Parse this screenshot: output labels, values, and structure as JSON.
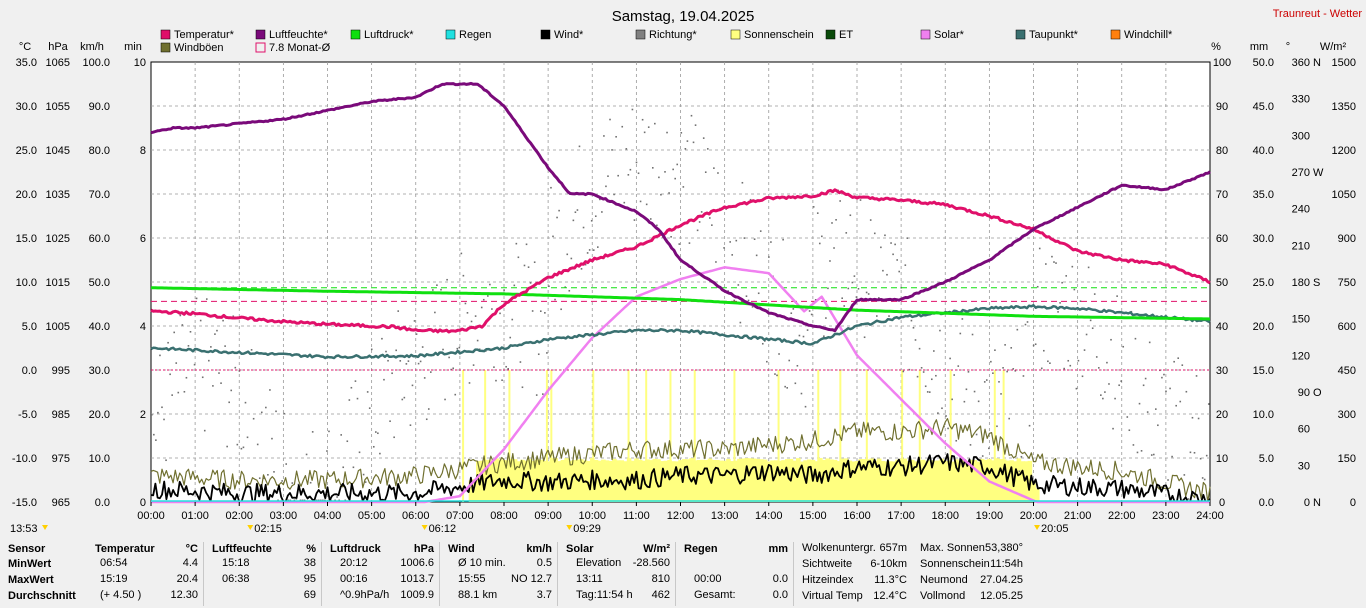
{
  "title": "Samstag, 19.04.2025",
  "brand": "Traunreut - Wetter",
  "legend": [
    {
      "label": "Temperatur*",
      "color": "#e0106a"
    },
    {
      "label": "Luftfeuchte*",
      "color": "#7a0a7a"
    },
    {
      "label": "Luftdruck*",
      "color": "#10e010"
    },
    {
      "label": "Regen",
      "color": "#20e0e0"
    },
    {
      "label": "Wind*",
      "color": "#000000"
    },
    {
      "label": "Richtung*",
      "color": "#808080"
    },
    {
      "label": "Sonnenschein",
      "color": "#ffff80"
    },
    {
      "label": "ET",
      "color": "#0a4a0a"
    },
    {
      "label": "Solar*",
      "color": "#f080f0"
    },
    {
      "label": "Taupunkt*",
      "color": "#3a7070"
    },
    {
      "label": "Windchill*",
      "color": "#ff8010"
    },
    {
      "label": "Windböen",
      "color": "#707030"
    },
    {
      "label": "7.8 Monat-Ø",
      "color": "#e0106a"
    }
  ],
  "axis_units": {
    "left": [
      "°C",
      "hPa",
      "km/h",
      "min"
    ],
    "right": [
      "%",
      "mm",
      "°",
      "W/m²"
    ]
  },
  "axes": {
    "temp": [
      "35.0",
      "30.0",
      "25.0",
      "20.0",
      "15.0",
      "10.0",
      "5.0",
      "0.0",
      "-5.0",
      "-10.0",
      "-15.0"
    ],
    "hpa": [
      "1065",
      "1055",
      "1045",
      "1035",
      "1025",
      "1015",
      "1005",
      "995",
      "985",
      "975",
      "965"
    ],
    "kmh": [
      "100.0",
      "90.0",
      "80.0",
      "70.0",
      "60.0",
      "50.0",
      "40.0",
      "30.0",
      "20.0",
      "10.0",
      "0.0"
    ],
    "min": [
      {
        "v": 10,
        "t": "10"
      },
      {
        "v": 8,
        "t": "8"
      },
      {
        "v": 6,
        "t": "6"
      },
      {
        "v": 4,
        "t": "4"
      },
      {
        "v": 2,
        "t": "2"
      },
      {
        "v": 0,
        "t": "0"
      }
    ],
    "pct": [
      "100",
      "90",
      "80",
      "70",
      "60",
      "50",
      "40",
      "30",
      "20",
      "10",
      "0"
    ],
    "mm": [
      "50.0",
      "45.0",
      "40.0",
      "35.0",
      "30.0",
      "25.0",
      "20.0",
      "15.0",
      "10.0",
      "5.0",
      "0.0"
    ],
    "deg": [
      {
        "v": 360,
        "t": "360",
        "d": "N"
      },
      {
        "v": 330,
        "t": "330",
        "d": ""
      },
      {
        "v": 300,
        "t": "300",
        "d": ""
      },
      {
        "v": 270,
        "t": "270",
        "d": "W"
      },
      {
        "v": 240,
        "t": "240",
        "d": ""
      },
      {
        "v": 210,
        "t": "210",
        "d": ""
      },
      {
        "v": 180,
        "t": "180",
        "d": "S"
      },
      {
        "v": 150,
        "t": "150",
        "d": ""
      },
      {
        "v": 120,
        "t": "120",
        "d": ""
      },
      {
        "v": 90,
        "t": "90",
        "d": "O"
      },
      {
        "v": 60,
        "t": "60",
        "d": ""
      },
      {
        "v": 30,
        "t": "30",
        "d": ""
      },
      {
        "v": 0,
        "t": "0",
        "d": "N"
      }
    ],
    "wm2": [
      "1500",
      "1350",
      "1200",
      "1050",
      "900",
      "750",
      "600",
      "450",
      "300",
      "150",
      "0"
    ],
    "time": [
      "00:00",
      "01:00",
      "02:00",
      "03:00",
      "04:00",
      "05:00",
      "06:00",
      "07:00",
      "08:00",
      "09:00",
      "10:00",
      "11:00",
      "12:00",
      "13:00",
      "14:00",
      "15:00",
      "16:00",
      "17:00",
      "18:00",
      "19:00",
      "20:00",
      "21:00",
      "22:00",
      "23:00",
      "24:00"
    ]
  },
  "markers": [
    {
      "label": "13:53",
      "h": -0.3
    },
    {
      "label": "02:15",
      "h": 2.25
    },
    {
      "label": "06:12",
      "h": 6.2
    },
    {
      "label": "09:29",
      "h": 9.48
    },
    {
      "label": "20:05",
      "h": 20.08
    }
  ],
  "chart_data": {
    "type": "line",
    "title": "Samstag, 19.04.2025",
    "x_unit": "hour",
    "xlim": [
      0,
      24
    ],
    "ylim_temperature": [
      -15,
      35
    ],
    "ylim_humidity": [
      0,
      100
    ],
    "ylim_pressure": [
      965,
      1065
    ],
    "ylim_wind": [
      0,
      100
    ],
    "ylim_solar": [
      0,
      1500
    ],
    "ylim_direction": [
      0,
      360
    ],
    "grid": true,
    "legend_position": "top",
    "series": [
      {
        "name": "Temperatur*",
        "unit": "°C",
        "color": "#e0106a",
        "x": [
          0,
          1,
          2,
          3,
          4,
          5,
          5.5,
          6,
          6.9,
          7.5,
          8,
          9,
          10,
          11,
          12,
          13,
          14,
          15,
          15.5,
          16,
          17,
          18,
          19,
          20,
          21,
          22,
          23,
          24
        ],
        "y": [
          6.7,
          6.4,
          5.9,
          5.5,
          5.2,
          5.0,
          4.9,
          4.5,
          4.4,
          5.0,
          7.5,
          10.5,
          12.5,
          14.0,
          16.5,
          18.5,
          19.5,
          19.8,
          20.4,
          19.6,
          19.3,
          18.8,
          17.5,
          16.0,
          13.5,
          12.5,
          12.0,
          10.0
        ]
      },
      {
        "name": "Luftfeuchte*",
        "unit": "%",
        "color": "#7a0a7a",
        "x": [
          0,
          0.5,
          1,
          2,
          3,
          4,
          5,
          6,
          6.6,
          7,
          7.4,
          8,
          9,
          9.5,
          10,
          11,
          11.5,
          12,
          13,
          14,
          15,
          15.5,
          16,
          17,
          18,
          19,
          20,
          21,
          22,
          23,
          24
        ],
        "y": [
          84,
          85,
          85,
          86,
          87,
          89,
          91,
          92,
          95,
          95,
          95,
          90,
          76,
          70,
          70,
          66,
          62,
          55,
          48,
          43,
          40,
          39,
          46,
          46,
          50,
          55,
          62,
          67,
          72,
          71,
          75
        ]
      },
      {
        "name": "Luftdruck*",
        "unit": "hPa",
        "color": "#10e010",
        "x": [
          0,
          4,
          8,
          12,
          16,
          20,
          24
        ],
        "y": [
          1013.7,
          1012.9,
          1012.3,
          1011.0,
          1008.6,
          1007.2,
          1006.6
        ]
      },
      {
        "name": "Taupunkt*",
        "unit": "°C",
        "color": "#3a7070",
        "x": [
          0,
          2,
          4,
          6,
          8,
          9,
          10,
          11,
          12,
          13,
          14,
          15,
          16,
          17,
          18,
          19,
          20,
          21,
          22,
          23,
          24
        ],
        "y": [
          2.5,
          2.0,
          1.5,
          1.6,
          2.5,
          3.5,
          4.0,
          4.5,
          4.5,
          4.0,
          3.5,
          3.0,
          5.0,
          6.0,
          6.5,
          7.0,
          7.2,
          7.0,
          6.5,
          6.0,
          5.5
        ]
      },
      {
        "name": "Solar*",
        "unit": "W/m²",
        "color": "#f080f0",
        "x": [
          0,
          6.2,
          7,
          8,
          9,
          10,
          11,
          12,
          13,
          14,
          14.8,
          15.2,
          16,
          17,
          18,
          19,
          20,
          20.08,
          24
        ],
        "y": [
          0,
          0,
          20,
          180,
          380,
          560,
          700,
          760,
          800,
          780,
          650,
          700,
          500,
          350,
          200,
          70,
          5,
          0,
          0
        ]
      },
      {
        "name": "Wind*",
        "unit": "km/h",
        "color": "#000000",
        "x": [
          0,
          2,
          4,
          6,
          8,
          9,
          10,
          11,
          12,
          13,
          14,
          15,
          16,
          17,
          18,
          19,
          20,
          22,
          24
        ],
        "y": [
          3,
          2,
          2,
          2,
          5,
          4.5,
          5,
          5,
          6,
          6,
          7,
          6,
          8,
          8,
          9,
          8,
          4,
          3,
          0.5
        ]
      },
      {
        "name": "Windböen",
        "unit": "km/h",
        "color": "#707030",
        "x": [
          0,
          2,
          4,
          6,
          8,
          9,
          10,
          11,
          12,
          13,
          14,
          15,
          16,
          17,
          18,
          19,
          20,
          22,
          24
        ],
        "y": [
          6,
          5,
          5,
          6,
          9,
          10,
          11,
          12,
          12,
          12,
          13,
          14,
          16,
          16,
          17,
          15,
          9,
          7,
          2
        ]
      },
      {
        "name": "Richtung*",
        "unit": "°",
        "color": "#808080"
      },
      {
        "name": "Sonnenschein",
        "unit": "min",
        "color": "#ffff80"
      },
      {
        "name": "Regen",
        "unit": "mm",
        "color": "#20e0e0"
      },
      {
        "name": "ET",
        "color": "#0a4a0a"
      },
      {
        "name": "Windchill*",
        "color": "#ff8010"
      }
    ],
    "reference_lines": [
      {
        "name": "7.8 Monat-Ø",
        "unit": "°C",
        "value": 7.8,
        "color": "#e0106a"
      }
    ]
  },
  "stats": {
    "sensor": {
      "header": "Sensor",
      "rows": [
        "MinWert",
        "MaxWert",
        "Durchschnitt"
      ]
    },
    "temperature": {
      "header": "Temperatur",
      "unit": "°C",
      "rows": [
        [
          "06:54",
          "4.4"
        ],
        [
          "15:19",
          "20.4"
        ],
        [
          "(+ 4.50 )",
          "12.30"
        ]
      ]
    },
    "humidity": {
      "header": "Luftfeuchte",
      "unit": "%",
      "rows": [
        [
          "15:18",
          "38"
        ],
        [
          "06:38",
          "95"
        ],
        [
          "",
          "69"
        ]
      ]
    },
    "pressure": {
      "header": "Luftdruck",
      "unit": "hPa",
      "rows": [
        [
          "20:12",
          "1006.6"
        ],
        [
          "00:16",
          "1013.7"
        ],
        [
          "^0.9hPa/h",
          "1009.9"
        ]
      ]
    },
    "wind": {
      "header": "Wind",
      "unit": "km/h",
      "rows": [
        [
          "Ø 10 min.",
          "0.5"
        ],
        [
          "15:55",
          "NO 12.7"
        ],
        [
          "88.1 km",
          "3.7"
        ]
      ]
    },
    "solar": {
      "header": "Solar",
      "unit": "W/m²",
      "rows": [
        [
          "Elevation",
          "-28.560"
        ],
        [
          "13:11",
          "810"
        ],
        [
          "Tag:11:54 h",
          "462"
        ]
      ]
    },
    "rain": {
      "header": "Regen",
      "unit": "mm",
      "rows": [
        [
          "",
          ""
        ],
        [
          "00:00",
          "0.0"
        ],
        [
          "Gesamt:",
          "0.0"
        ]
      ]
    },
    "misc": {
      "rows": [
        [
          "Wolkenuntergr.",
          "657m"
        ],
        [
          "Sichtweite",
          "6-10km"
        ],
        [
          "Hitzeindex",
          "11.3°C"
        ],
        [
          "Virtual Temp",
          "12.4°C"
        ]
      ]
    },
    "astro": {
      "rows": [
        [
          "Max. Sonnen",
          "53,380°"
        ],
        [
          "Sonnenschein",
          "11:54h"
        ],
        [
          "Neumond",
          "27.04.25"
        ],
        [
          "Vollmond",
          "12.05.25"
        ]
      ]
    }
  }
}
